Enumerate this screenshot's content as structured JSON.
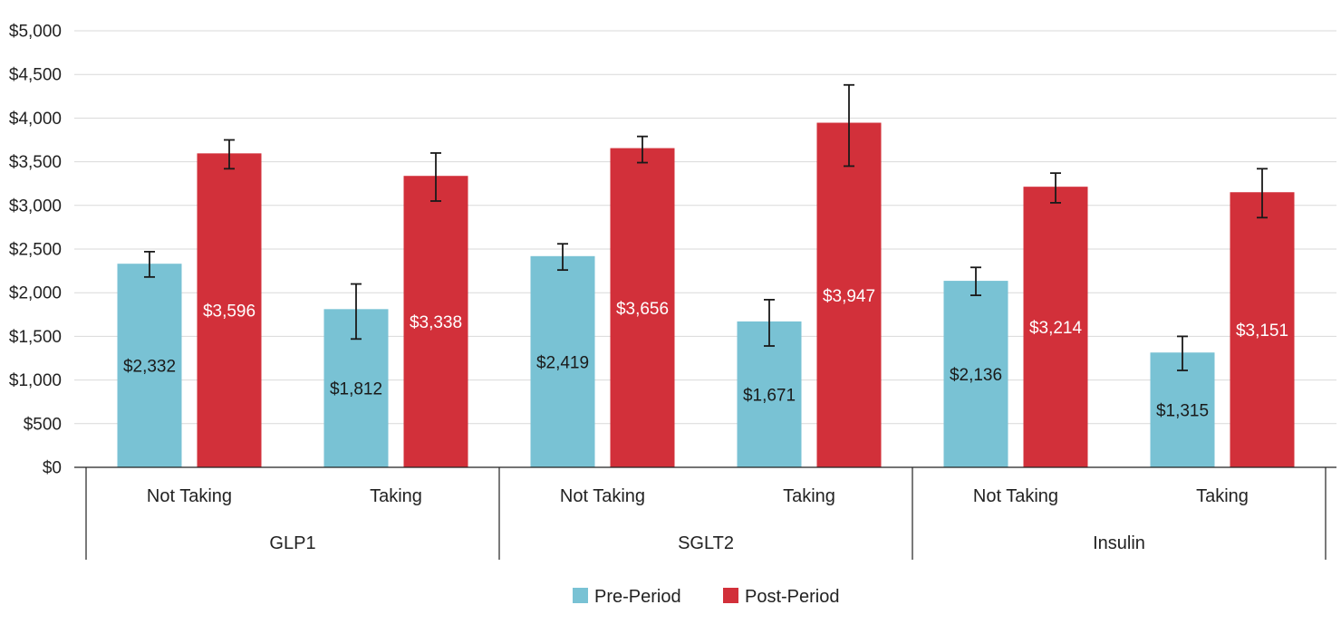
{
  "chart_data": {
    "type": "bar",
    "title": "",
    "xlabel": "",
    "ylabel": "",
    "ylim": [
      0,
      5000
    ],
    "y_ticks": [
      0,
      500,
      1000,
      1500,
      2000,
      2500,
      3000,
      3500,
      4000,
      4500,
      5000
    ],
    "y_tick_labels": [
      "$0",
      "$500",
      "$1,000",
      "$1,500",
      "$2,000",
      "$2,500",
      "$3,000",
      "$3,500",
      "$4,000",
      "$4,500",
      "$5,000"
    ],
    "grid": true,
    "legend_position": "bottom-center",
    "groups": [
      {
        "label": "GLP1",
        "categories": [
          "Not Taking",
          "Taking"
        ]
      },
      {
        "label": "SGLT2",
        "categories": [
          "Not Taking",
          "Taking"
        ]
      },
      {
        "label": "Insulin",
        "categories": [
          "Not Taking",
          "Taking"
        ]
      }
    ],
    "categories": [
      "Not Taking",
      "Taking",
      "Not Taking",
      "Taking",
      "Not Taking",
      "Taking"
    ],
    "series": [
      {
        "name": "Pre-Period",
        "color": "#79c2d4",
        "label_color": "#1a1a1a",
        "values": [
          2332,
          1812,
          2419,
          1671,
          2136,
          1315
        ],
        "data_labels": [
          "$2,332",
          "$1,812",
          "$2,419",
          "$1,671",
          "$2,136",
          "$1,315"
        ],
        "error_low": [
          2180,
          1470,
          2260,
          1390,
          1970,
          1110
        ],
        "error_high": [
          2470,
          2100,
          2560,
          1920,
          2290,
          1500
        ]
      },
      {
        "name": "Post-Period",
        "color": "#d2303a",
        "label_color": "#ffffff",
        "values": [
          3596,
          3338,
          3656,
          3947,
          3214,
          3151
        ],
        "data_labels": [
          "$3,596",
          "$3,338",
          "$3,656",
          "$3,947",
          "$3,214",
          "$3,151"
        ],
        "error_low": [
          3420,
          3050,
          3490,
          3450,
          3030,
          2860
        ],
        "error_high": [
          3750,
          3600,
          3790,
          4380,
          3370,
          3420
        ]
      }
    ]
  }
}
